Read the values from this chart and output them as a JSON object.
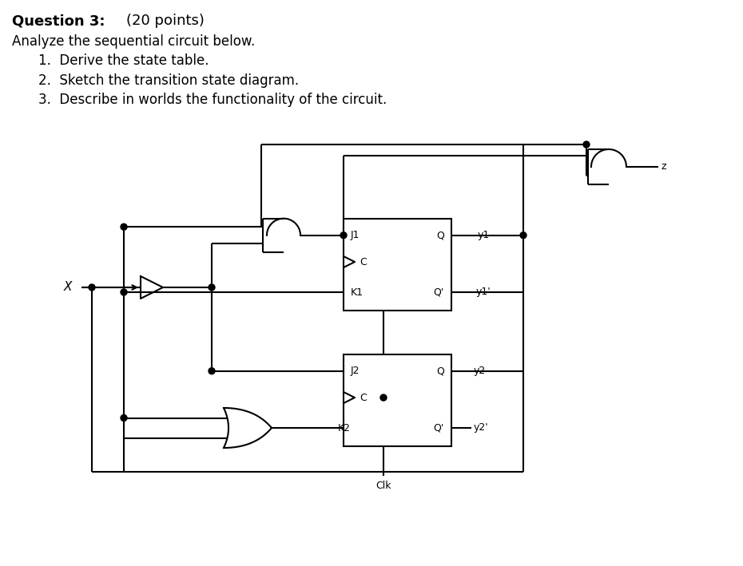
{
  "bg_color": "#ffffff",
  "line_color": "#000000",
  "text_color": "#000000",
  "title_bold": "Question 3:",
  "title_normal": " (20 points)",
  "line1": "Analyze the sequential circuit below.",
  "items": [
    "1.  Derive the state table.",
    "2.  Sketch the transition state diagram.",
    "3.  Describe in worlds the functionality of the circuit."
  ],
  "font_size_title": 13,
  "font_size_body": 12,
  "font_size_small": 9
}
